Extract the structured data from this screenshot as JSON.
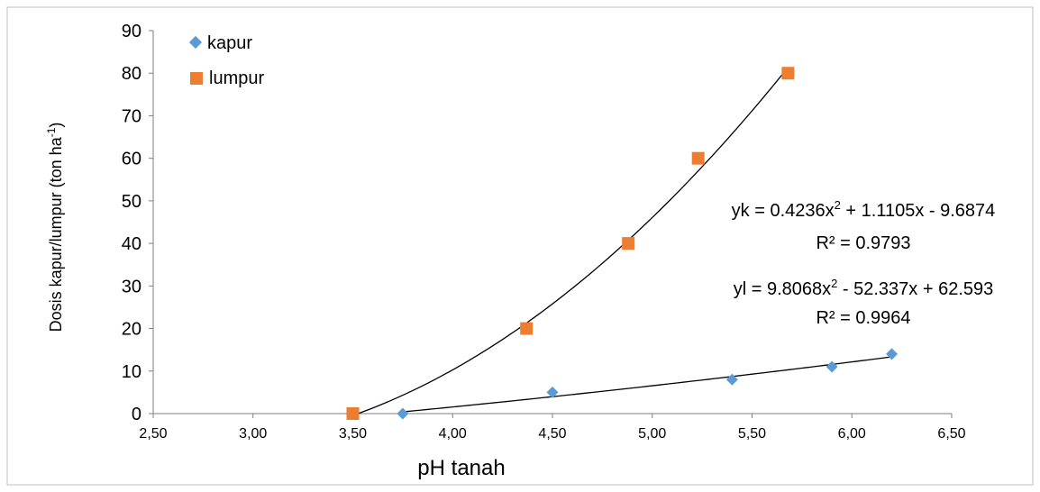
{
  "chart_data": {
    "type": "scatter",
    "title": "",
    "xlabel": "pH tanah",
    "ylabel": "Dosis  kapur/lumpur (ton ha",
    "ylabel_sup": "-1",
    "ylabel_end": ")",
    "xlim": [
      2.5,
      6.5
    ],
    "ylim": [
      0,
      90
    ],
    "x_ticks": [
      2.5,
      3.0,
      3.5,
      4.0,
      4.5,
      5.0,
      5.5,
      6.0,
      6.5
    ],
    "x_tick_labels": [
      "2,50",
      "3,00",
      "3,50",
      "4,00",
      "4,50",
      "5,00",
      "5,50",
      "6,00",
      "6,50"
    ],
    "y_ticks": [
      0,
      10,
      20,
      30,
      40,
      50,
      60,
      70,
      80,
      90
    ],
    "y_tick_labels": [
      "0",
      "10",
      "20",
      "30",
      "40",
      "50",
      "60",
      "70",
      "80",
      "90"
    ],
    "grid": false,
    "legend_position": "top-left",
    "series": [
      {
        "name": "kapur",
        "marker": "diamond",
        "color": "#5B9BD5",
        "x": [
          3.75,
          4.5,
          5.4,
          5.9,
          6.2
        ],
        "y": [
          0,
          5,
          8,
          11,
          14
        ]
      },
      {
        "name": "lumpur",
        "marker": "square",
        "color": "#ED7D31",
        "x": [
          3.5,
          4.37,
          4.88,
          5.23,
          5.68
        ],
        "y": [
          0,
          20,
          40,
          60,
          80
        ]
      }
    ],
    "trendlines": [
      {
        "series": "kapur",
        "fit": "polynomial-2",
        "x_range": [
          3.75,
          6.2
        ]
      },
      {
        "series": "lumpur",
        "fit": "polynomial-2",
        "x_range": [
          3.5,
          5.68
        ]
      }
    ],
    "annotations": [
      {
        "id": "eq-kapur-1",
        "text": "yk = 0.4236x",
        "sup": "2",
        "rest": " + 1.1105x - 9.6874"
      },
      {
        "id": "eq-kapur-2",
        "text": "R² = 0.9793"
      },
      {
        "id": "eq-lumpur-1",
        "text": "yl = 9.8068x",
        "sup": "2",
        "rest": " - 52.337x + 62.593"
      },
      {
        "id": "eq-lumpur-2",
        "text": "R² = 0.9964"
      }
    ]
  }
}
